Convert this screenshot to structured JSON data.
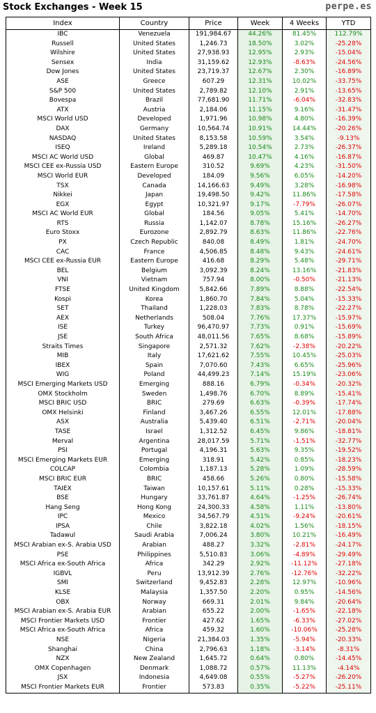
{
  "header": {
    "title": "Stock Exchanges - Week 15",
    "brand": "perpe.es"
  },
  "columns": [
    "Index",
    "Country",
    "Price",
    "Week",
    "4 Weeks",
    "YTD"
  ],
  "rows": [
    [
      "IBC",
      "Venezuela",
      "191,984.67",
      "44.26%",
      "81.45%",
      "112.79%"
    ],
    [
      "Russell",
      "United States",
      "1,246.73",
      "18.50%",
      "3.02%",
      "-25.28%"
    ],
    [
      "Wilshire",
      "United States",
      "27,938.93",
      "12.95%",
      "2.93%",
      "-15.04%"
    ],
    [
      "Sensex",
      "India",
      "31,159.62",
      "12.93%",
      "-8.63%",
      "-24.56%"
    ],
    [
      "Dow Jones",
      "United States",
      "23,719.37",
      "12.67%",
      "2.30%",
      "-16.89%"
    ],
    [
      "ASE",
      "Greece",
      "607.29",
      "12.31%",
      "10.02%",
      "-33.75%"
    ],
    [
      "S&P 500",
      "United States",
      "2,789.82",
      "12.10%",
      "2.91%",
      "-13.65%"
    ],
    [
      "Bovespa",
      "Brazil",
      "77,681.90",
      "11.71%",
      "-6.04%",
      "-32.83%"
    ],
    [
      "ATX",
      "Austria",
      "2,184.06",
      "11.15%",
      "9.16%",
      "-31.47%"
    ],
    [
      "MSCI World USD",
      "Developed",
      "1,971.96",
      "10.98%",
      "4.80%",
      "-16.39%"
    ],
    [
      "DAX",
      "Germany",
      "10,564.74",
      "10.91%",
      "14.44%",
      "-20.26%"
    ],
    [
      "NASDAQ",
      "United States",
      "8,153.58",
      "10.59%",
      "3.54%",
      "-9.13%"
    ],
    [
      "ISEQ",
      "Ireland",
      "5,289.18",
      "10.54%",
      "2.73%",
      "-26.37%"
    ],
    [
      "MSCI AC World USD",
      "Global",
      "469.87",
      "10.47%",
      "4.16%",
      "-16.87%"
    ],
    [
      "MSCI CEE ex-Russia USD",
      "Eastern Europe",
      "310.52",
      "9.69%",
      "4.23%",
      "-31.50%"
    ],
    [
      "MSCI World EUR",
      "Developed",
      "184.09",
      "9.56%",
      "6.05%",
      "-14.20%"
    ],
    [
      "TSX",
      "Canada",
      "14,166.63",
      "9.49%",
      "3.28%",
      "-16.98%"
    ],
    [
      "Nikkei",
      "Japan",
      "19,498.50",
      "9.42%",
      "11.86%",
      "-17.58%"
    ],
    [
      "EGX",
      "Egypt",
      "10,321.97",
      "9.17%",
      "-7.79%",
      "-26.07%"
    ],
    [
      "MSCI AC World EUR",
      "Global",
      "184.56",
      "9.05%",
      "5.41%",
      "-14.70%"
    ],
    [
      "RTS",
      "Russia",
      "1,142.07",
      "8.78%",
      "15.16%",
      "-26.27%"
    ],
    [
      "Euro Stoxx",
      "Eurozone",
      "2,892.79",
      "8.63%",
      "11.86%",
      "-22.76%"
    ],
    [
      "PX",
      "Czech Republic",
      "840.08",
      "8.49%",
      "1.81%",
      "-24.70%"
    ],
    [
      "CAC",
      "France",
      "4,506.85",
      "8.48%",
      "9.43%",
      "-24.61%"
    ],
    [
      "MSCI CEE ex-Russia EUR",
      "Eastern Europe",
      "416.68",
      "8.29%",
      "5.48%",
      "-29.71%"
    ],
    [
      "BEL",
      "Belgium",
      "3,092.39",
      "8.24%",
      "13.16%",
      "-21.83%"
    ],
    [
      "VNI",
      "Vietnam",
      "757.94",
      "8.00%",
      "-0.50%",
      "-21.13%"
    ],
    [
      "FTSE",
      "United Kingdom",
      "5,842.66",
      "7.89%",
      "8.88%",
      "-22.54%"
    ],
    [
      "Kospi",
      "Korea",
      "1,860.70",
      "7.84%",
      "5.04%",
      "-15.33%"
    ],
    [
      "SET",
      "Thailand",
      "1,228.03",
      "7.83%",
      "8.78%",
      "-22.27%"
    ],
    [
      "AEX",
      "Netherlands",
      "508.04",
      "7.76%",
      "17.37%",
      "-15.97%"
    ],
    [
      "ISE",
      "Turkey",
      "96,470.97",
      "7.73%",
      "0.91%",
      "-15.69%"
    ],
    [
      "JSE",
      "South Africa",
      "48,011.56",
      "7.65%",
      "8.68%",
      "-15.89%"
    ],
    [
      "Straits Times",
      "Singapore",
      "2,571.32",
      "7.62%",
      "-2.38%",
      "-20.22%"
    ],
    [
      "MIB",
      "Italy",
      "17,621.62",
      "7.55%",
      "10.45%",
      "-25.03%"
    ],
    [
      "IBEX",
      "Spain",
      "7,070.60",
      "7.43%",
      "6.65%",
      "-25.96%"
    ],
    [
      "WIG",
      "Poland",
      "44,499.23",
      "7.14%",
      "15.19%",
      "-23.06%"
    ],
    [
      "MSCI Emerging Markets USD",
      "Emerging",
      "888.16",
      "6.79%",
      "-0.34%",
      "-20.32%"
    ],
    [
      "OMX Stockholm",
      "Sweden",
      "1,498.76",
      "6.70%",
      "8.89%",
      "-15.41%"
    ],
    [
      "MSCI BRIC USD",
      "BRIC",
      "279.69",
      "6.63%",
      "-0.39%",
      "-17.74%"
    ],
    [
      "OMX Helsinki",
      "Finland",
      "3,467.26",
      "6.55%",
      "12.01%",
      "-17.88%"
    ],
    [
      "ASX",
      "Australia",
      "5,439.40",
      "6.51%",
      "-2.71%",
      "-20.04%"
    ],
    [
      "TASE",
      "Israel",
      "1,312.52",
      "6.45%",
      "9.86%",
      "-18.81%"
    ],
    [
      "Merval",
      "Argentina",
      "28,017.59",
      "5.71%",
      "-1.51%",
      "-32.77%"
    ],
    [
      "PSI",
      "Portugal",
      "4,196.31",
      "5.63%",
      "9.35%",
      "-19.52%"
    ],
    [
      "MSCI Emerging Markets EUR",
      "Emerging",
      "318.91",
      "5.42%",
      "0.85%",
      "-18.23%"
    ],
    [
      "COLCAP",
      "Colombia",
      "1,187.13",
      "5.28%",
      "1.09%",
      "-28.59%"
    ],
    [
      "MSCI BRIC EUR",
      "BRIC",
      "458.66",
      "5.26%",
      "0.80%",
      "-15.58%"
    ],
    [
      "TAIEX",
      "Taiwan",
      "10,157.61",
      "5.11%",
      "0.28%",
      "-15.33%"
    ],
    [
      "BSE",
      "Hungary",
      "33,761.87",
      "4.64%",
      "-1.25%",
      "-26.74%"
    ],
    [
      "Hang Seng",
      "Hong Kong",
      "24,300.33",
      "4.58%",
      "1.11%",
      "-13.80%"
    ],
    [
      "IPC",
      "Mexico",
      "34,567.79",
      "4.51%",
      "-9.24%",
      "-20.61%"
    ],
    [
      "IPSA",
      "Chile",
      "3,822.18",
      "4.02%",
      "1.56%",
      "-18.15%"
    ],
    [
      "Tadawul",
      "Saudi Arabia",
      "7,006.24",
      "3.80%",
      "10.21%",
      "-16.49%"
    ],
    [
      "MSCI Arabian ex-S. Arabia USD",
      "Arabian",
      "488.27",
      "3.32%",
      "-2.81%",
      "-24.17%"
    ],
    [
      "PSE",
      "Philippines",
      "5,510.83",
      "3.06%",
      "-4.89%",
      "-29.49%"
    ],
    [
      "MSCI Africa ex-South Africa",
      "Africa",
      "342.29",
      "2.92%",
      "-11.12%",
      "-27.18%"
    ],
    [
      "IGBVL",
      "Peru",
      "13,912.39",
      "2.76%",
      "-12.76%",
      "-32.22%"
    ],
    [
      "SMI",
      "Switzerland",
      "9,452.83",
      "2.28%",
      "12.97%",
      "-10.96%"
    ],
    [
      "KLSE",
      "Malaysia",
      "1,357.50",
      "2.20%",
      "0.95%",
      "-14.56%"
    ],
    [
      "OBX",
      "Norway",
      "669.31",
      "2.01%",
      "9.84%",
      "-20.64%"
    ],
    [
      "MSCI Arabian ex-S. Arabia EUR",
      "Arabian",
      "655.22",
      "2.00%",
      "-1.65%",
      "-22.18%"
    ],
    [
      "MSCI Frontier Markets USD",
      "Frontier",
      "427.62",
      "1.65%",
      "-6.33%",
      "-27.02%"
    ],
    [
      "MSCI Africa ex-South Africa",
      "Africa",
      "459.32",
      "1.60%",
      "-10.06%",
      "-25.28%"
    ],
    [
      "NSE",
      "Nigeria",
      "21,384.03",
      "1.35%",
      "-5.94%",
      "-20.33%"
    ],
    [
      "Shanghai",
      "China",
      "2,796.63",
      "1.18%",
      "-3.14%",
      "-8.31%"
    ],
    [
      "NZX",
      "New Zealand",
      "1,645.72",
      "0.64%",
      "0.80%",
      "-14.45%"
    ],
    [
      "OMX Copenhagen",
      "Denmark",
      "1,088.72",
      "0.57%",
      "11.13%",
      "-4.14%"
    ],
    [
      "JSX",
      "Indonesia",
      "4,649.08",
      "0.55%",
      "-5.27%",
      "-26.20%"
    ],
    [
      "MSCI Frontier Markets EUR",
      "Frontier",
      "573.83",
      "0.35%",
      "-5.22%",
      "-25.11%"
    ]
  ],
  "colors": {
    "positive": "#1a8a1a",
    "negative": "#e00000",
    "week_bg": "#e6f3e6"
  }
}
